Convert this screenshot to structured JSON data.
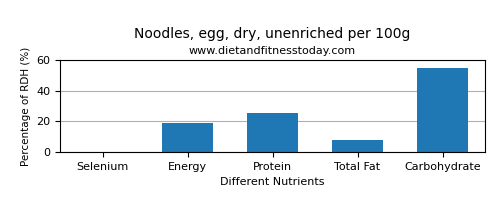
{
  "chart_data": {
    "type": "bar",
    "title": "Noodles, egg, dry, unenriched per 100g",
    "subtitle": "www.dietandfitnesstoday.com",
    "xlabel": "Different Nutrients",
    "ylabel": "Percentage of RDH (%)",
    "categories": [
      "Selenium",
      "Energy",
      "Protein",
      "Total Fat",
      "Carbohydrate"
    ],
    "values": [
      0,
      19,
      25.5,
      8,
      55
    ],
    "ylim": [
      0,
      60
    ],
    "yticks": [
      0,
      20,
      40,
      60
    ],
    "grid": true
  }
}
